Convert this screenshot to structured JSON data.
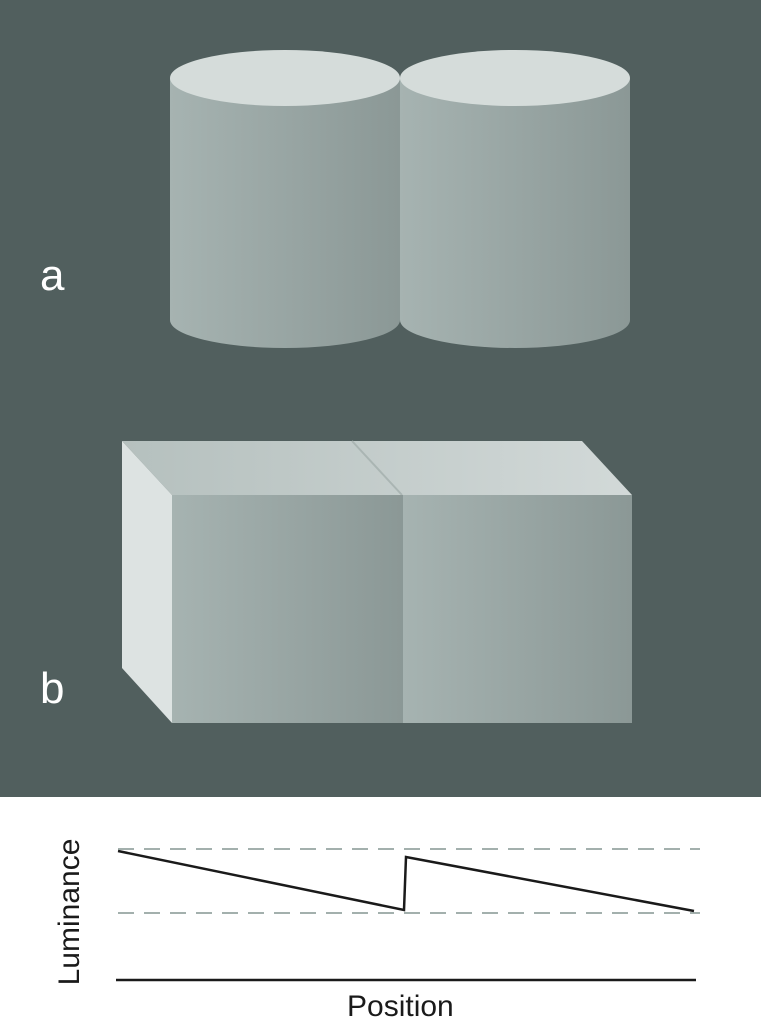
{
  "panels": {
    "a": {
      "label": "a"
    },
    "b": {
      "label": "b"
    }
  },
  "graph": {
    "xlabel": "Position",
    "ylabel": "Luminance"
  },
  "colors": {
    "background_dark": "#515f5e",
    "background_light": "#ffffff",
    "cylinder_top": "#d5dcda",
    "face_light": "#a6b3b1",
    "face_dark": "#8b9896",
    "box_side": "#dde3e2",
    "box_top": "#c2cccb",
    "profile_line": "#1a1a1a",
    "reference_dash": "#a3b0ad"
  }
}
